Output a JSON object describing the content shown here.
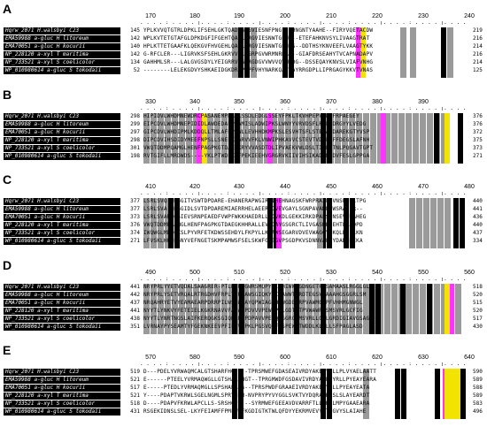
{
  "names": [
    "Hqrw_2071 H.walsbyi C23",
    "EMA59988 a-gluc H litoreum",
    "EMA70051 a-gluc H kocurii",
    "NP_228120 a-xyl T maritima",
    "NP_733521 a-xyl S coelicolor",
    "WP_010980614 a-gluc S tokodaii"
  ],
  "panels": [
    {
      "letter": "A",
      "ticks": [
        "170",
        "180",
        "190",
        "200",
        "210",
        "220",
        "230",
        "240"
      ],
      "starts": [
        "145",
        "142",
        "140",
        "142",
        "134",
        "52"
      ],
      "ends": [
        "219",
        "216",
        "214",
        "216",
        "214",
        "125"
      ],
      "seqs": [
        "YPLKVVQTGTRLDPKLIFSEHLGKTQADLGRGVIESNFPNG--AHNGNTYAAHE--FIRYVQETACDW",
        "WPLKVTETGTAFGLDPKDGFIFGEHTQADLGRGVIESNWTGPHG--ETEFAHKNVSYLIVAAGTRAT",
        "HPLKTTETGAAFKLQEKGVFHVGEHLQADLGRGVIESNWTGPHGS--DDTHSYKNVEEFLVAAGTYKK",
        "G-RFCLER---LIGRVKSFSEHLGKRVVDLGGRPGVWRMNRDAE--GIAFDRSEAHYTVCAPNADAPV",
        "GAHHMLSR---LALGVGSDYLYEIGRRVPGERGDGVVWVVQVMQDG--DSSEQAYKNVSLVIAFVNHG",
        "--------LELEKGDVYSHKAEIDGKDRKPRPFVHYNARKQAYGAYRRGDPLLIPRGAGYKKVTVNAS"
      ],
      "cols": [
        [
          "k",
          107
        ],
        [
          "k",
          114
        ],
        [
          "g",
          100
        ],
        [
          "g",
          121
        ],
        [
          "k",
          157
        ],
        [
          "k",
          164
        ],
        [
          "m",
          240
        ],
        [
          "y",
          245
        ],
        [
          "g",
          290
        ],
        [
          "g",
          301
        ],
        [
          "k",
          336
        ],
        [
          "g",
          343
        ]
      ]
    },
    {
      "letter": "B",
      "ticks": [
        "330",
        "340",
        "350",
        "360",
        "370",
        "380",
        "390"
      ],
      "starts": [
        "298",
        "299",
        "297",
        "298",
        "301",
        "198"
      ],
      "ends": [
        "376",
        "376",
        "372",
        "375",
        "373",
        "271"
      ],
      "seqs": [
        "HIPIDVLWHDMNEWDRCPASANEMPRAPLSSDLEDGLSSEYFPKLTKVHPEPVTDLFRPAEGEY",
        "EIPCDVLWHDMNEPIDIDLAWDEDAPPEAMISLADWIPKSLWNYYVRVDSFLPRFADRGYYLVEDG",
        "GIPCDVLWHDIPMLKDDQLLTMLAFPPDWLLEVHHDKMPKSLESVHTSFLSTEFAFDAREKGTYVSP",
        "DIPCDVIHSDIDYMEEFNPSLLSNELKGARVVFKLVNWIPHKAVVCSTEVTVDLFRFFDEGSLAFNH",
        "VWQTDDMPQAMGLHENFPAGPKGTDAEGKRYVVASDTDLIPVAEKVWLDSLTIQWMTNLPQGAVTGPT",
        "RVTGIFLLMRDWDS----YKLPTWDEKKFPEKIEEHVGRGRVKIIVIHSIKADQNYDVFESLGPPGA"
      ],
      "cols": [
        [
          "g",
          0
        ],
        [
          "g",
          8
        ],
        [
          "g",
          16
        ],
        [
          "g",
          24
        ],
        [
          "g",
          32
        ],
        [
          "g",
          40
        ],
        [
          "g",
          48
        ],
        [
          "g",
          56
        ],
        [
          "g",
          64
        ],
        [
          "g",
          72
        ],
        [
          "g",
          80
        ],
        [
          "g",
          88
        ],
        [
          "g",
          96
        ],
        [
          "g",
          104
        ],
        [
          "g",
          112
        ],
        [
          "g",
          120
        ],
        [
          "g",
          128
        ],
        [
          "g",
          136
        ],
        [
          "g",
          144
        ],
        [
          "g",
          152
        ],
        [
          "g",
          160
        ],
        [
          "g",
          168
        ],
        [
          "g",
          176
        ],
        [
          "g",
          184
        ],
        [
          "g",
          192
        ],
        [
          "g",
          200
        ],
        [
          "g",
          208
        ],
        [
          "g",
          216
        ],
        [
          "g",
          224
        ],
        [
          "g",
          232
        ],
        [
          "g",
          240
        ],
        [
          "g",
          248
        ],
        [
          "g",
          256
        ],
        [
          "g",
          264
        ],
        [
          "g",
          272
        ],
        [
          "g",
          280
        ],
        [
          "g",
          288
        ],
        [
          "g",
          296
        ],
        [
          "g",
          304
        ],
        [
          "g",
          312
        ],
        [
          "g",
          320
        ],
        [
          "g",
          328
        ],
        [
          "g",
          336
        ],
        [
          "m",
          60
        ],
        [
          "y",
          66
        ],
        [
          "k",
          96
        ],
        [
          "k",
          103
        ],
        [
          "m",
          140
        ],
        [
          "k",
          200
        ],
        [
          "k",
          207
        ],
        [
          "m",
          268
        ],
        [
          "k",
          328
        ],
        [
          "y",
          340
        ],
        [
          "k",
          355
        ]
      ]
    },
    {
      "letter": "C",
      "ticks": [
        "410",
        "420",
        "430",
        "440",
        "450",
        "460",
        "470",
        "480"
      ],
      "starts": [
        "377",
        "377",
        "373",
        "376",
        "374",
        "271"
      ],
      "ends": [
        "440",
        "441",
        "436",
        "440",
        "437",
        "334"
      ],
      "seqs": [
        "LSRLSVQ-DRGGITVSWTDPDARE-EHANERAPWGIRGIHEHNAGSKFWRPRAIFAVNSLEDLTPG",
        "LSRLSVA-DRGGIDLSVTDPDAREMIAERRHELAEERAQVEVGAYLSGNPAVAKEQWSRALPR--",
        "LSRLSVARDGGIEVSRNPEAEDFVWPFWKKHAEDRLLPCVKDLGEKKIRKDPAFSPNSEVTKAHEG",
        "VWQTDDMPQAMGLHENFPAGPKGTDAEGKHHRALLEVEGAYGSGRCTLIVGASRKSEHTWFADPD",
        "IWQWGLMDPGKSLPYVRFETKDWSSEHDYLFKPYLLKVAWSEGARVDVEVWAGGYLKQLDQELKN",
        "LFVSKLHHKPGNYVEFNGETSKMPAMWSFSELSKWFGLEGVPSGDPKVSDNNVAPEYDADSKEKA"
      ],
      "cols": [
        [
          "g",
          0
        ],
        [
          "g",
          8
        ],
        [
          "g",
          16
        ],
        [
          "g",
          24
        ],
        [
          "k",
          28
        ],
        [
          "k",
          35
        ],
        [
          "k",
          140
        ],
        [
          "k",
          147
        ],
        [
          "k",
          200
        ],
        [
          "k",
          207
        ],
        [
          "m",
          150
        ],
        [
          "g",
          196
        ],
        [
          "k",
          226
        ],
        [
          "k",
          233
        ],
        [
          "g",
          300
        ],
        [
          "g",
          308
        ],
        [
          "g",
          316
        ],
        [
          "g",
          324
        ],
        [
          "g",
          332
        ],
        [
          "g",
          340
        ],
        [
          "k",
          350
        ],
        [
          "k",
          357
        ]
      ]
    },
    {
      "letter": "D",
      "ticks": [
        "490",
        "500",
        "510",
        "520",
        "530",
        "540",
        "550",
        "560"
      ],
      "starts": [
        "441",
        "442",
        "437",
        "441",
        "438",
        "351"
      ],
      "ends": [
        "518",
        "520",
        "515",
        "520",
        "517",
        "430"
      ],
      "seqs": [
        "NRYPRLYYETVQDALSAAGRER-PTLNVRSGWRSMQPYRIKHIWWLGDNGETPSSAMAASLRGGLGL",
        "NRYPRLYSETVRQALRTRGDHVFRPLTERDAWSGIQKYPIKAWWTGRDTEGSVEAAAHGSGGRLSM",
        "NRQAHRYETVYEAMAEARPDRRPILWSGWDAYQPWIAGTHWWGDETRPVAWMGAPFVHHMGNWGL",
        "NYYTLYNKVYFETEIELKGKRNAVVFAPARPDVVVPEWQPQLGDTSTPVWAWRCSMSVRLGCFIG",
        "NYYTLYNRTNGSLAIFKERQGKSGIQRLFRPDPAVVPEWQPGGRGSMSVRLLGGLGRDIGIAVGSAG",
        "LVRNAYPYSEAMTYFGEKNKEEVPFIFTVGPKLPGSVQAFGSPEWTTWDDLKLQLLSFPAGLASD"
      ],
      "cols": [
        [
          "g",
          0
        ],
        [
          "g",
          8
        ],
        [
          "g",
          16
        ],
        [
          "g",
          24
        ],
        [
          "g",
          32
        ],
        [
          "g",
          40
        ],
        [
          "g",
          48
        ],
        [
          "g",
          56
        ],
        [
          "g",
          64
        ],
        [
          "g",
          72
        ],
        [
          "g",
          80
        ],
        [
          "g",
          88
        ],
        [
          "g",
          96
        ],
        [
          "g",
          104
        ],
        [
          "g",
          112
        ],
        [
          "g",
          120
        ],
        [
          "g",
          128
        ],
        [
          "g",
          136
        ],
        [
          "g",
          144
        ],
        [
          "g",
          152
        ],
        [
          "g",
          160
        ],
        [
          "g",
          168
        ],
        [
          "g",
          176
        ],
        [
          "g",
          184
        ],
        [
          "g",
          192
        ],
        [
          "g",
          200
        ],
        [
          "g",
          208
        ],
        [
          "g",
          216
        ],
        [
          "g",
          224
        ],
        [
          "g",
          232
        ],
        [
          "g",
          240
        ],
        [
          "g",
          248
        ],
        [
          "g",
          256
        ],
        [
          "g",
          264
        ],
        [
          "g",
          272
        ],
        [
          "g",
          280
        ],
        [
          "g",
          288
        ],
        [
          "g",
          296
        ],
        [
          "g",
          304
        ],
        [
          "g",
          312
        ],
        [
          "g",
          320
        ],
        [
          "g",
          328
        ],
        [
          "g",
          336
        ],
        [
          "g",
          344
        ],
        [
          "g",
          352
        ],
        [
          "k",
          100
        ],
        [
          "k",
          108
        ],
        [
          "k",
          145
        ],
        [
          "k",
          152
        ],
        [
          "k",
          170
        ],
        [
          "k",
          200
        ],
        [
          "k",
          255
        ],
        [
          "k",
          262
        ],
        [
          "k",
          290
        ],
        [
          "k",
          320
        ],
        [
          "m",
          345
        ],
        [
          "y",
          340
        ]
      ]
    },
    {
      "letter": "E",
      "ticks": [
        "570",
        "580",
        "590",
        "600",
        "610",
        "620",
        "630",
        "640"
      ],
      "starts": [
        "519",
        "521",
        "517",
        "521",
        "518",
        "431"
      ],
      "ends": [
        "590",
        "589",
        "588",
        "589",
        "583",
        "496"
      ],
      "seqs": [
        "D---PDELYVRWAQMCALGTSHARFHGF---TPRSMWEFGDASEAIVRDYAKEHYRLLPLVYAELAATT",
        "E------PTEELYVRMAQWGLLGTSHARFHGT--TPRGMWDFGSDAVIVRDYAKERYRLLPYEAYEARA",
        "E-----PTEDLYVRMAQMGLLSPSHARRHG--TPRSPWDFGRAAEIVRDYAKERYRLLPYEAYEATA",
        "Y----PDAPTVKRWLSGELNGMLSPRYHGW-NVPRYPYVYGGLSVKTVYDQRALKRSLSLAYEARDT",
        "D----PDAPVFKRWLAPCLLS-SRSHGPG---SYRMWEFGEEAVDVARRFTLLKHRLMPYGAAEARA",
        "RSGEKIDNSLSEL-LKYFEIAMFFPMFWPFKGDIGTKTWLQFDYYEKRMVEVYRTTGVYSLAIAHE"
      ],
      "cols": [
        [
          "k",
          100
        ],
        [
          "k",
          107
        ],
        [
          "k",
          200
        ],
        [
          "k",
          207
        ],
        [
          "g",
          248
        ],
        [
          "k",
          284
        ],
        [
          "k",
          291
        ],
        [
          "k",
          329
        ],
        [
          "m",
          338
        ],
        [
          "m",
          344
        ],
        [
          "y",
          340
        ],
        [
          "y",
          346
        ],
        [
          "y",
          352
        ],
        [
          "k",
          358
        ]
      ]
    }
  ]
}
